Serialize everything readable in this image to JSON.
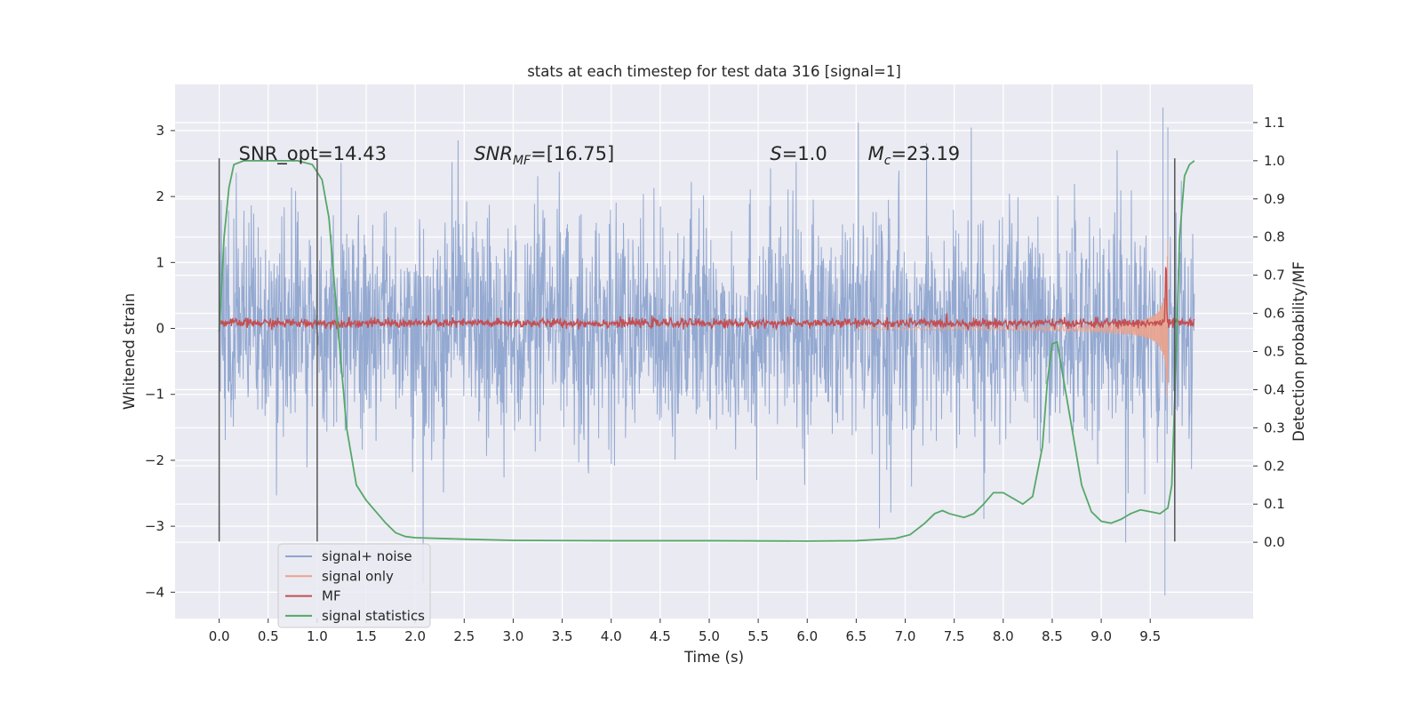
{
  "chart_data": {
    "type": "line",
    "title": "stats at each timestep for test data 316 [signal=1]",
    "xlabel": "Time (s)",
    "ylabel": "Whitened strain",
    "y2label": "Detection probability/MF",
    "xlim": [
      -0.45,
      10.55
    ],
    "ylim": [
      -4.4,
      3.7
    ],
    "y2lim": [
      -0.2,
      1.2
    ],
    "x_ticks": [
      "0.0",
      "0.5",
      "1.0",
      "1.5",
      "2.0",
      "2.5",
      "3.0",
      "3.5",
      "4.0",
      "4.5",
      "5.0",
      "5.5",
      "6.0",
      "6.5",
      "7.0",
      "7.5",
      "8.0",
      "8.5",
      "9.0",
      "9.5"
    ],
    "y_ticks": [
      "3",
      "2",
      "1",
      "0",
      "−1",
      "−2",
      "−3",
      "−4"
    ],
    "y2_ticks": [
      "1.1",
      "1.0",
      "0.9",
      "0.8",
      "0.7",
      "0.6",
      "0.5",
      "0.4",
      "0.3",
      "0.2",
      "0.1",
      "0.0"
    ],
    "grid": true,
    "legend_position": "lower-left",
    "annotations": {
      "snr_opt": "SNR_opt=14.43",
      "snr_mf_label": "SNR",
      "snr_mf_sub": "MF",
      "snr_mf_value": "=[16.75]",
      "s_label": "S",
      "s_value": "=1.0",
      "mc_label": "M",
      "mc_sub": "c",
      "mc_value": "=23.19"
    },
    "vertical_markers": [
      0.0,
      1.0,
      9.75
    ],
    "series": [
      {
        "name": "signal+ noise",
        "color": "#8fa5cf",
        "axis": "left",
        "x_range": [
          0.0,
          9.95
        ],
        "noise_sigma": 0.85,
        "peak_min": -4.05,
        "peak_max": 3.35
      },
      {
        "name": "signal only",
        "color": "#eba38d",
        "axis": "left",
        "x_range": [
          6.5,
          9.68
        ],
        "max_amplitude": 2.4
      },
      {
        "name": "MF",
        "color": "#c44e52",
        "axis": "left",
        "x_range": [
          0.0,
          9.95
        ],
        "baseline": 0.08,
        "peak_x": 9.66,
        "peak_y": 1.0
      },
      {
        "name": "signal statistics",
        "color": "#55a868",
        "axis": "right",
        "points": [
          [
            0.0,
            0.55
          ],
          [
            0.05,
            0.8
          ],
          [
            0.1,
            0.93
          ],
          [
            0.15,
            0.99
          ],
          [
            0.25,
            1.0
          ],
          [
            0.5,
            1.0
          ],
          [
            0.8,
            1.0
          ],
          [
            0.95,
            0.99
          ],
          [
            1.05,
            0.95
          ],
          [
            1.12,
            0.85
          ],
          [
            1.2,
            0.6
          ],
          [
            1.3,
            0.3
          ],
          [
            1.4,
            0.15
          ],
          [
            1.5,
            0.11
          ],
          [
            1.6,
            0.08
          ],
          [
            1.7,
            0.05
          ],
          [
            1.8,
            0.025
          ],
          [
            1.9,
            0.015
          ],
          [
            2.0,
            0.012
          ],
          [
            2.5,
            0.008
          ],
          [
            3.0,
            0.005
          ],
          [
            4.0,
            0.004
          ],
          [
            5.0,
            0.004
          ],
          [
            6.0,
            0.003
          ],
          [
            6.5,
            0.004
          ],
          [
            6.9,
            0.01
          ],
          [
            7.05,
            0.02
          ],
          [
            7.2,
            0.05
          ],
          [
            7.3,
            0.075
          ],
          [
            7.38,
            0.083
          ],
          [
            7.45,
            0.075
          ],
          [
            7.6,
            0.065
          ],
          [
            7.7,
            0.075
          ],
          [
            7.8,
            0.1
          ],
          [
            7.9,
            0.13
          ],
          [
            8.0,
            0.13
          ],
          [
            8.1,
            0.115
          ],
          [
            8.2,
            0.1
          ],
          [
            8.3,
            0.12
          ],
          [
            8.4,
            0.25
          ],
          [
            8.45,
            0.42
          ],
          [
            8.5,
            0.52
          ],
          [
            8.55,
            0.525
          ],
          [
            8.6,
            0.45
          ],
          [
            8.7,
            0.3
          ],
          [
            8.8,
            0.15
          ],
          [
            8.9,
            0.08
          ],
          [
            9.0,
            0.055
          ],
          [
            9.1,
            0.05
          ],
          [
            9.2,
            0.06
          ],
          [
            9.3,
            0.075
          ],
          [
            9.4,
            0.085
          ],
          [
            9.5,
            0.08
          ],
          [
            9.6,
            0.075
          ],
          [
            9.68,
            0.09
          ],
          [
            9.72,
            0.15
          ],
          [
            9.76,
            0.45
          ],
          [
            9.8,
            0.8
          ],
          [
            9.85,
            0.96
          ],
          [
            9.9,
            0.99
          ],
          [
            9.95,
            1.0
          ]
        ]
      }
    ]
  }
}
